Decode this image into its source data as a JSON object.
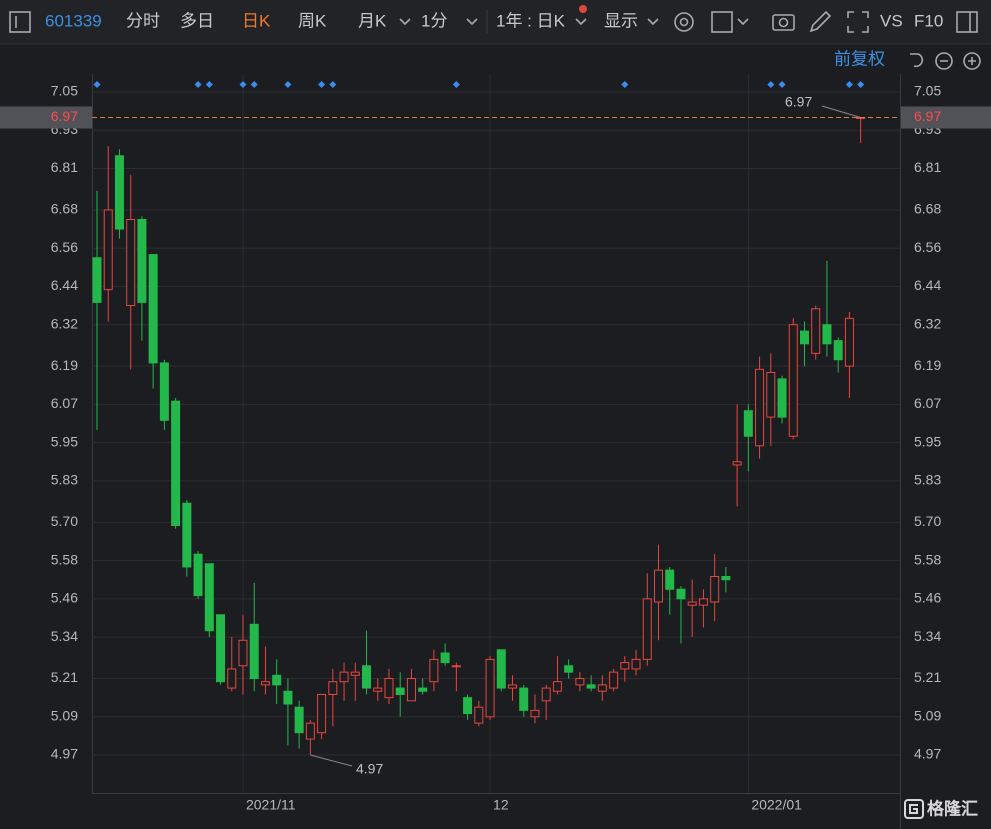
{
  "toolbar": {
    "code": "601339",
    "tabs": [
      "分时",
      "多日",
      "日K",
      "周K",
      "月K",
      "1分"
    ],
    "range": "1年 : 日K",
    "display": "显示",
    "vs": "VS",
    "f10": "F10"
  },
  "adjust": "前复权",
  "watermark": "格隆汇",
  "chart_data": {
    "type": "candlestick",
    "categories": [
      null,
      null,
      null,
      null,
      null,
      null,
      null,
      null,
      null,
      null,
      null,
      null,
      null,
      "2021/11",
      null,
      null,
      null,
      null,
      null,
      null,
      null,
      null,
      null,
      null,
      null,
      null,
      null,
      null,
      null,
      null,
      null,
      null,
      null,
      null,
      null,
      "12",
      null,
      null,
      null,
      null,
      null,
      null,
      null,
      null,
      null,
      null,
      null,
      null,
      null,
      null,
      null,
      null,
      null,
      null,
      null,
      null,
      null,
      null,
      "2022/01",
      null,
      null,
      null,
      null,
      null,
      null,
      null,
      null,
      null,
      null
    ],
    "open": [
      6.53,
      6.43,
      6.85,
      6.38,
      6.65,
      6.54,
      6.2,
      6.08,
      5.76,
      5.6,
      5.57,
      5.41,
      5.18,
      5.25,
      5.38,
      5.19,
      5.22,
      5.17,
      5.12,
      5.02,
      5.04,
      5.16,
      5.2,
      5.22,
      5.25,
      5.17,
      5.15,
      5.18,
      5.14,
      5.18,
      5.2,
      5.29,
      5.25,
      5.15,
      5.07,
      5.09,
      5.3,
      5.18,
      5.18,
      5.09,
      5.14,
      5.17,
      5.25,
      5.19,
      5.19,
      5.17,
      5.18,
      5.24,
      5.24,
      5.27,
      5.45,
      5.55,
      5.49,
      5.44,
      5.44,
      5.45,
      5.53,
      5.88,
      6.05,
      5.94,
      6.03,
      6.15,
      5.97,
      6.3,
      6.23,
      6.32,
      6.27,
      6.19,
      6.97
    ],
    "high": [
      6.74,
      6.88,
      6.87,
      6.79,
      6.66,
      6.54,
      6.21,
      6.09,
      5.77,
      5.61,
      5.57,
      5.41,
      5.34,
      5.41,
      5.51,
      5.31,
      5.27,
      5.21,
      5.14,
      5.08,
      5.16,
      5.24,
      5.26,
      5.26,
      5.36,
      5.21,
      5.24,
      5.23,
      5.24,
      5.21,
      5.3,
      5.32,
      5.26,
      5.16,
      5.14,
      5.28,
      5.3,
      5.22,
      5.19,
      5.16,
      5.19,
      5.28,
      5.27,
      5.23,
      5.22,
      5.22,
      5.24,
      5.28,
      5.3,
      5.54,
      5.63,
      5.56,
      5.5,
      5.52,
      5.49,
      5.6,
      5.56,
      6.07,
      6.07,
      6.22,
      6.23,
      6.16,
      6.34,
      6.33,
      6.38,
      6.52,
      6.28,
      6.36,
      6.97
    ],
    "low": [
      5.99,
      6.33,
      6.59,
      6.18,
      6.27,
      6.12,
      5.99,
      5.68,
      5.53,
      5.46,
      5.34,
      5.19,
      5.17,
      5.16,
      5.17,
      5.16,
      5.13,
      5.0,
      4.99,
      4.97,
      5.02,
      5.06,
      5.14,
      5.14,
      5.16,
      5.14,
      5.13,
      5.09,
      5.14,
      5.16,
      5.17,
      5.25,
      5.17,
      5.08,
      5.06,
      5.08,
      5.17,
      5.14,
      5.09,
      5.07,
      5.08,
      5.16,
      5.21,
      5.17,
      5.17,
      5.14,
      5.17,
      5.2,
      5.22,
      5.25,
      5.33,
      5.41,
      5.32,
      5.34,
      5.37,
      5.39,
      5.48,
      5.75,
      5.86,
      5.9,
      5.94,
      6.01,
      5.96,
      6.19,
      6.21,
      6.22,
      6.17,
      6.09,
      6.89
    ],
    "close": [
      6.39,
      6.68,
      6.62,
      6.65,
      6.39,
      6.2,
      6.02,
      5.69,
      5.56,
      5.47,
      5.36,
      5.2,
      5.24,
      5.33,
      5.21,
      5.2,
      5.19,
      5.13,
      5.04,
      5.07,
      5.16,
      5.2,
      5.23,
      5.23,
      5.18,
      5.18,
      5.21,
      5.16,
      5.21,
      5.17,
      5.27,
      5.26,
      5.25,
      5.1,
      5.12,
      5.27,
      5.18,
      5.19,
      5.11,
      5.11,
      5.18,
      5.2,
      5.23,
      5.21,
      5.18,
      5.19,
      5.23,
      5.26,
      5.27,
      5.46,
      5.55,
      5.49,
      5.46,
      5.45,
      5.46,
      5.53,
      5.52,
      5.89,
      5.97,
      6.18,
      6.17,
      6.03,
      6.32,
      6.26,
      6.37,
      6.26,
      6.21,
      6.34,
      6.97
    ],
    "up_color": "#e8463d",
    "down_color": "#22b84a",
    "ylim": [
      4.97,
      7.05
    ],
    "yticks": [
      7.05,
      6.93,
      6.81,
      6.68,
      6.56,
      6.44,
      6.32,
      6.19,
      6.07,
      5.95,
      5.83,
      {
        "value": 5.7,
        "label": "5.70"
      },
      5.58,
      5.46,
      5.34,
      5.21,
      5.09,
      4.97
    ],
    "grid": true
  }
}
